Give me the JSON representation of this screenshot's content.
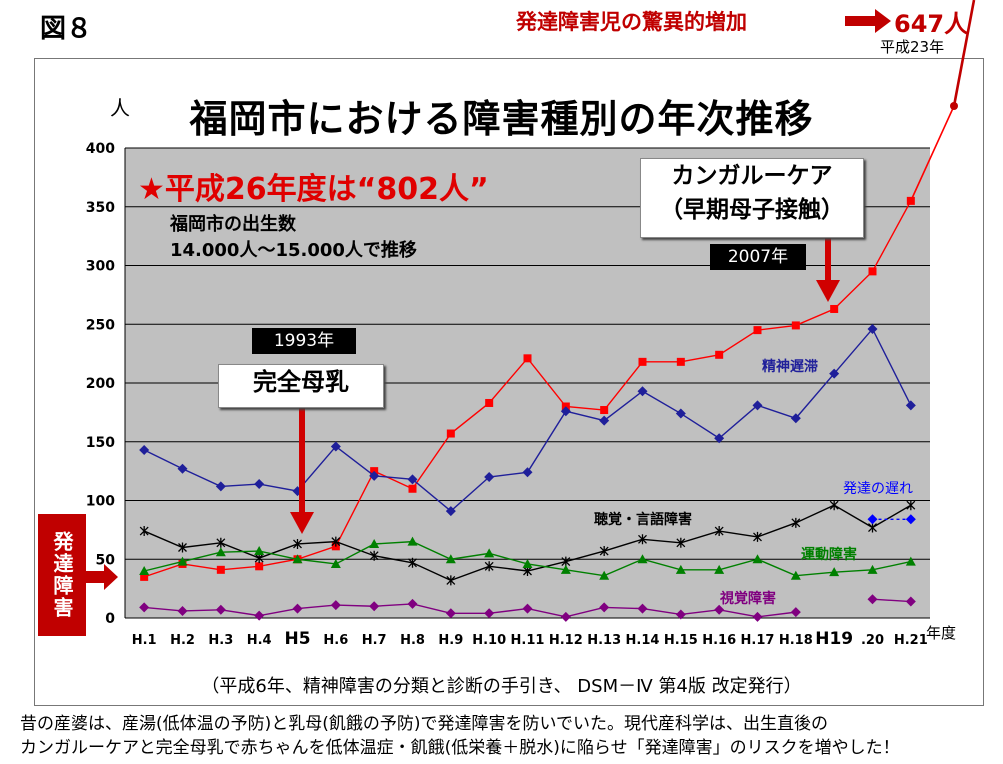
{
  "figure_label": "図８",
  "headline": "発達障害児の驚異的増加",
  "headline_count": "647人",
  "headline_sub": "平成23年",
  "colors": {
    "plot_bg": "#c0c0c0",
    "accent_red": "#c00000",
    "developmental": "#ff0000",
    "intellectual": "#1f1f9a",
    "hearing": "#000000",
    "motor": "#008000",
    "visual": "#800080",
    "delay": "#0000ff"
  },
  "unit_label": "人",
  "x_unit_label": "年度",
  "callouts": {
    "h26": "★平成26年度は“802人”",
    "births_line1": "福岡市の出生数",
    "births_line2": "14.000人～15.000人で推移",
    "kangaroo_line1": "カンガルーケア",
    "kangaroo_line2": "（早期母子接触）",
    "year2007": "2007年",
    "year1993": "1993年",
    "breastfeeding": "完全母乳"
  },
  "side_box": "発達障害",
  "footnote": "（平成6年、精神障害の分類と診断の手引き、 DSM－Ⅳ 第4版 改定発行）",
  "bottom_line1": "昔の産婆は、産湯(低体温の予防)と乳母(飢餓の予防)で発達障害を防いでいた。現代産科学は、出生直後の",
  "bottom_line2": "カンガルーケアと完全母乳で赤ちゃんを低体温症・飢餓(低栄養＋脱水)に陥らせ「発達障害」のリスクを増やした！",
  "chart_data": {
    "type": "line",
    "title": "福岡市における障害種別の年次推移",
    "ylabel": "人",
    "xlabel": "年度",
    "ylim": [
      0,
      400
    ],
    "yticks": [
      0,
      50,
      100,
      150,
      200,
      250,
      300,
      350,
      400
    ],
    "grid": true,
    "categories": [
      "H.1",
      "H.2",
      "H.3",
      "H.4",
      "H5",
      "H.6",
      "H.7",
      "H.8",
      "H.9",
      "H.10",
      "H.11",
      "H.12",
      "H.13",
      "H.14",
      "H.15",
      "H.16",
      "H.17",
      "H.18",
      "H19",
      ".20",
      "H.21"
    ],
    "bold_categories": [
      "H5",
      "H19"
    ],
    "series": [
      {
        "name": "発達障害",
        "label": "",
        "color": "#ff0000",
        "marker": "square",
        "values": [
          35,
          46,
          41,
          44,
          50,
          61,
          125,
          110,
          157,
          183,
          221,
          180,
          177,
          218,
          218,
          224,
          245,
          249,
          263,
          295,
          355
        ]
      },
      {
        "name": "精神遅滞",
        "label": "精神遅滞",
        "color": "#1f1f9a",
        "marker": "diamond",
        "values": [
          143,
          127,
          112,
          114,
          108,
          146,
          121,
          118,
          91,
          120,
          124,
          176,
          168,
          193,
          174,
          153,
          181,
          170,
          208,
          246,
          181
        ]
      },
      {
        "name": "聴覚・言語障害",
        "label": "聴覚・言語障害",
        "color": "#000000",
        "marker": "star",
        "values": [
          74,
          60,
          64,
          51,
          63,
          65,
          53,
          47,
          32,
          44,
          40,
          48,
          57,
          67,
          64,
          74,
          69,
          81,
          96,
          77,
          96
        ]
      },
      {
        "name": "運動障害",
        "label": "運動障害",
        "color": "#008000",
        "marker": "triangle",
        "values": [
          40,
          48,
          56,
          57,
          50,
          46,
          63,
          65,
          50,
          55,
          46,
          41,
          36,
          50,
          41,
          41,
          50,
          36,
          39,
          41,
          48
        ]
      },
      {
        "name": "視覚障害",
        "label": "視覚障害",
        "color": "#800080",
        "marker": "diamond",
        "values": [
          9,
          6,
          7,
          2,
          8,
          11,
          10,
          12,
          4,
          4,
          8,
          1,
          9,
          8,
          3,
          7,
          1,
          5,
          null,
          16,
          14
        ]
      },
      {
        "name": "発達の遅れ",
        "label": "発達の遅れ",
        "color": "#0000ff",
        "marker": "diamond",
        "dashed": true,
        "values": [
          null,
          null,
          null,
          null,
          null,
          null,
          null,
          null,
          null,
          null,
          null,
          null,
          null,
          null,
          null,
          null,
          null,
          null,
          null,
          84,
          84
        ]
      }
    ],
    "extension": {
      "from_value": 355,
      "to_value": 647,
      "label": "647人"
    }
  }
}
